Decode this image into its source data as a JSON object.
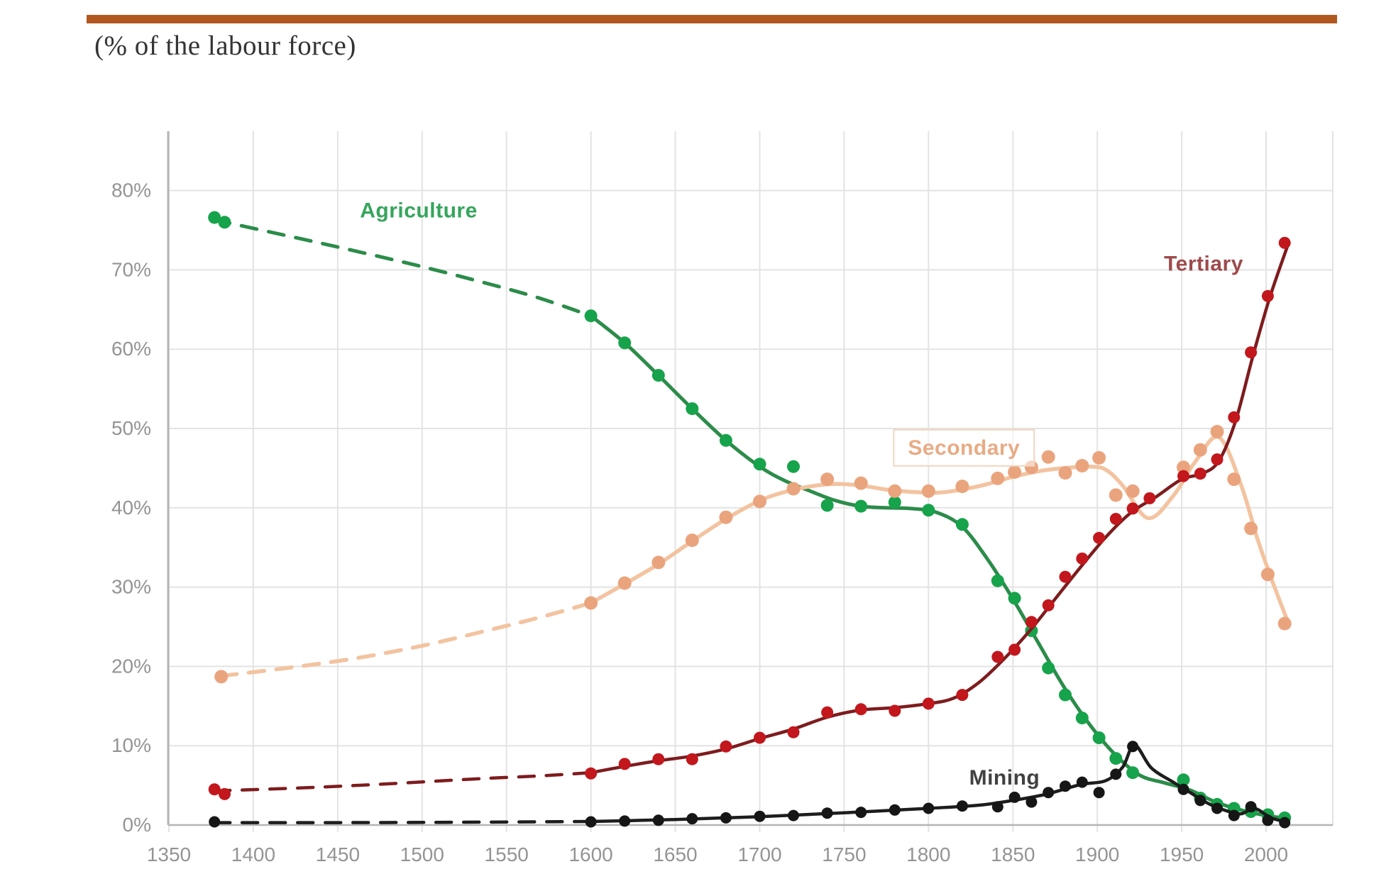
{
  "header": {
    "title": "(% of the labour force)",
    "rule_color": "#b2571f"
  },
  "chart_data": {
    "type": "line",
    "title": "(% of the labour force)",
    "xlabel": "",
    "ylabel": "",
    "x_axis": {
      "min": 1350,
      "max": 2000,
      "tick_step": 50,
      "tick_labels": [
        "1350",
        "1400",
        "1450",
        "1500",
        "1550",
        "1600",
        "1650",
        "1700",
        "1750",
        "1800",
        "1850",
        "1900",
        "1950",
        "2000"
      ]
    },
    "y_axis": {
      "min": 0,
      "max": 80,
      "tick_step": 10,
      "tick_labels": [
        "0%",
        "10%",
        "20%",
        "30%",
        "40%",
        "50%",
        "60%",
        "70%",
        "80%"
      ]
    },
    "grid": true,
    "legend_position": "inline-labels",
    "notes": "dashed segments = pre-1600 interpolation, solid = observed trend, dots = data points",
    "series": [
      {
        "id": "agriculture",
        "name": "Agriculture",
        "dot_color": "#17a34b",
        "line_color": "#2c8c4a",
        "label": {
          "text": "Agriculture",
          "year": 1498,
          "value": 77.5,
          "color": "#35a55b",
          "boxed": false
        },
        "dashed_line": [
          [
            1377,
            76.3
          ],
          [
            1420,
            74.3
          ],
          [
            1460,
            72.4
          ],
          [
            1500,
            70.4
          ],
          [
            1540,
            68.2
          ],
          [
            1570,
            66.4
          ],
          [
            1600,
            64.2
          ]
        ],
        "solid_line": [
          [
            1600,
            64.2
          ],
          [
            1620,
            60.8
          ],
          [
            1640,
            56.7
          ],
          [
            1660,
            52.5
          ],
          [
            1680,
            48.5
          ],
          [
            1700,
            45.2
          ],
          [
            1715,
            43.4
          ],
          [
            1730,
            42.1
          ],
          [
            1745,
            40.9
          ],
          [
            1760,
            40.2
          ],
          [
            1775,
            40.0
          ],
          [
            1790,
            39.9
          ],
          [
            1805,
            39.4
          ],
          [
            1820,
            37.6
          ],
          [
            1835,
            33.5
          ],
          [
            1850,
            28.5
          ],
          [
            1865,
            23.0
          ],
          [
            1880,
            17.5
          ],
          [
            1895,
            12.8
          ],
          [
            1910,
            9.0
          ],
          [
            1925,
            6.3
          ],
          [
            1940,
            5.3
          ],
          [
            1955,
            4.4
          ],
          [
            1970,
            2.9
          ],
          [
            1985,
            1.9
          ],
          [
            2000,
            1.2
          ],
          [
            2013,
            0.8
          ]
        ],
        "dots": [
          [
            1377,
            76.6
          ],
          [
            1383,
            76.0
          ],
          [
            1600,
            64.2
          ],
          [
            1620,
            60.8
          ],
          [
            1640,
            56.7
          ],
          [
            1660,
            52.5
          ],
          [
            1680,
            48.5
          ],
          [
            1700,
            45.5
          ],
          [
            1720,
            45.2
          ],
          [
            1740,
            40.3
          ],
          [
            1760,
            40.2
          ],
          [
            1780,
            40.7
          ],
          [
            1800,
            39.7
          ],
          [
            1820,
            37.9
          ],
          [
            1841,
            30.8
          ],
          [
            1851,
            28.6
          ],
          [
            1861,
            24.5
          ],
          [
            1871,
            19.8
          ],
          [
            1881,
            16.4
          ],
          [
            1891,
            13.5
          ],
          [
            1901,
            11.0
          ],
          [
            1911,
            8.4
          ],
          [
            1921,
            6.6
          ],
          [
            1951,
            5.7
          ],
          [
            1961,
            3.4
          ],
          [
            1971,
            2.6
          ],
          [
            1981,
            2.1
          ],
          [
            1991,
            1.7
          ],
          [
            2001,
            1.3
          ],
          [
            2011,
            0.9
          ]
        ]
      },
      {
        "id": "secondary",
        "name": "Secondary",
        "dot_color": "#eaa47d",
        "line_color": "#f3c3a0",
        "label": {
          "text": "Secondary",
          "year": 1821,
          "value": 47.6,
          "color": "#e8ab85",
          "boxed": true,
          "box_color": "#f0d5bf"
        },
        "dashed_line": [
          [
            1381,
            18.8
          ],
          [
            1420,
            19.8
          ],
          [
            1460,
            21.0
          ],
          [
            1500,
            22.6
          ],
          [
            1540,
            24.6
          ],
          [
            1570,
            26.2
          ],
          [
            1600,
            28.0
          ]
        ],
        "solid_line": [
          [
            1600,
            28.0
          ],
          [
            1620,
            30.4
          ],
          [
            1640,
            32.9
          ],
          [
            1660,
            35.8
          ],
          [
            1680,
            38.6
          ],
          [
            1700,
            40.9
          ],
          [
            1715,
            42.0
          ],
          [
            1730,
            42.7
          ],
          [
            1745,
            43.0
          ],
          [
            1760,
            42.8
          ],
          [
            1775,
            42.3
          ],
          [
            1790,
            42.0
          ],
          [
            1805,
            41.9
          ],
          [
            1820,
            42.3
          ],
          [
            1835,
            43.0
          ],
          [
            1850,
            43.9
          ],
          [
            1865,
            44.6
          ],
          [
            1880,
            45.0
          ],
          [
            1895,
            45.2
          ],
          [
            1905,
            44.8
          ],
          [
            1915,
            42.8
          ],
          [
            1930,
            38.7
          ],
          [
            1945,
            41.5
          ],
          [
            1958,
            45.8
          ],
          [
            1972,
            48.9
          ],
          [
            1985,
            43.0
          ],
          [
            1995,
            36.0
          ],
          [
            2005,
            30.0
          ],
          [
            2013,
            25.6
          ]
        ],
        "dots": [
          [
            1381,
            18.7
          ],
          [
            1600,
            28.0
          ],
          [
            1620,
            30.5
          ],
          [
            1640,
            33.1
          ],
          [
            1660,
            35.9
          ],
          [
            1680,
            38.8
          ],
          [
            1700,
            40.8
          ],
          [
            1720,
            42.4
          ],
          [
            1740,
            43.6
          ],
          [
            1760,
            43.1
          ],
          [
            1780,
            42.1
          ],
          [
            1800,
            42.1
          ],
          [
            1820,
            42.7
          ],
          [
            1841,
            43.7
          ],
          [
            1851,
            44.5
          ],
          [
            1861,
            45.1
          ],
          [
            1871,
            46.4
          ],
          [
            1881,
            44.4
          ],
          [
            1891,
            45.3
          ],
          [
            1901,
            46.3
          ],
          [
            1911,
            41.6
          ],
          [
            1921,
            42.1
          ],
          [
            1951,
            45.1
          ],
          [
            1961,
            47.3
          ],
          [
            1971,
            49.6
          ],
          [
            1981,
            43.6
          ],
          [
            1991,
            37.4
          ],
          [
            2001,
            31.6
          ],
          [
            2011,
            25.4
          ]
        ]
      },
      {
        "id": "tertiary",
        "name": "Tertiary",
        "dot_color": "#c2171d",
        "line_color": "#7e1c1e",
        "label": {
          "text": "Tertiary",
          "year": 1963,
          "value": 70.8,
          "color": "#9e4a4c",
          "boxed": false
        },
        "dashed_line": [
          [
            1377,
            4.3
          ],
          [
            1430,
            4.7
          ],
          [
            1480,
            5.2
          ],
          [
            1530,
            5.8
          ],
          [
            1570,
            6.2
          ],
          [
            1600,
            6.6
          ]
        ],
        "solid_line": [
          [
            1600,
            6.6
          ],
          [
            1620,
            7.4
          ],
          [
            1640,
            8.1
          ],
          [
            1660,
            8.7
          ],
          [
            1680,
            9.6
          ],
          [
            1700,
            10.9
          ],
          [
            1720,
            12.1
          ],
          [
            1740,
            13.6
          ],
          [
            1760,
            14.5
          ],
          [
            1780,
            14.8
          ],
          [
            1800,
            15.3
          ],
          [
            1815,
            16.0
          ],
          [
            1830,
            18.0
          ],
          [
            1845,
            21.0
          ],
          [
            1860,
            24.5
          ],
          [
            1875,
            28.5
          ],
          [
            1890,
            32.5
          ],
          [
            1905,
            36.3
          ],
          [
            1920,
            39.4
          ],
          [
            1935,
            41.4
          ],
          [
            1950,
            43.6
          ],
          [
            1962,
            44.3
          ],
          [
            1972,
            45.9
          ],
          [
            1982,
            51.0
          ],
          [
            1992,
            59.0
          ],
          [
            2002,
            66.4
          ],
          [
            2013,
            73.2
          ]
        ],
        "dots": [
          [
            1377,
            4.5
          ],
          [
            1383,
            3.9
          ],
          [
            1600,
            6.5
          ],
          [
            1620,
            7.7
          ],
          [
            1640,
            8.3
          ],
          [
            1660,
            8.3
          ],
          [
            1680,
            9.9
          ],
          [
            1700,
            11.0
          ],
          [
            1720,
            11.7
          ],
          [
            1740,
            14.2
          ],
          [
            1760,
            14.6
          ],
          [
            1780,
            14.4
          ],
          [
            1800,
            15.3
          ],
          [
            1820,
            16.4
          ],
          [
            1841,
            21.2
          ],
          [
            1851,
            22.1
          ],
          [
            1861,
            25.6
          ],
          [
            1871,
            27.7
          ],
          [
            1881,
            31.3
          ],
          [
            1891,
            33.6
          ],
          [
            1901,
            36.2
          ],
          [
            1911,
            38.6
          ],
          [
            1921,
            39.9
          ],
          [
            1931,
            41.2
          ],
          [
            1951,
            44.0
          ],
          [
            1961,
            44.3
          ],
          [
            1971,
            46.1
          ],
          [
            1981,
            51.4
          ],
          [
            1991,
            59.6
          ],
          [
            2001,
            66.7
          ],
          [
            2011,
            73.4
          ]
        ]
      },
      {
        "id": "mining",
        "name": "Mining",
        "dot_color": "#161616",
        "line_color": "#1d1d1d",
        "label": {
          "text": "Mining",
          "year": 1845,
          "value": 6.0,
          "color": "#414141",
          "boxed": false
        },
        "dashed_line": [
          [
            1377,
            0.3
          ],
          [
            1450,
            0.3
          ],
          [
            1520,
            0.35
          ],
          [
            1600,
            0.45
          ]
        ],
        "solid_line": [
          [
            1600,
            0.45
          ],
          [
            1650,
            0.7
          ],
          [
            1700,
            1.05
          ],
          [
            1750,
            1.55
          ],
          [
            1800,
            2.1
          ],
          [
            1830,
            2.5
          ],
          [
            1850,
            3.1
          ],
          [
            1870,
            3.9
          ],
          [
            1890,
            5.1
          ],
          [
            1905,
            5.6
          ],
          [
            1915,
            7.3
          ],
          [
            1922,
            10.1
          ],
          [
            1932,
            7.2
          ],
          [
            1945,
            5.4
          ],
          [
            1955,
            4.1
          ],
          [
            1965,
            2.8
          ],
          [
            1975,
            1.9
          ],
          [
            1985,
            1.4
          ],
          [
            1993,
            2.1
          ],
          [
            2003,
            0.9
          ],
          [
            2013,
            0.35
          ]
        ],
        "dots": [
          [
            1377,
            0.4
          ],
          [
            1600,
            0.4
          ],
          [
            1620,
            0.5
          ],
          [
            1640,
            0.6
          ],
          [
            1660,
            0.8
          ],
          [
            1680,
            0.9
          ],
          [
            1700,
            1.1
          ],
          [
            1720,
            1.2
          ],
          [
            1740,
            1.5
          ],
          [
            1760,
            1.6
          ],
          [
            1780,
            1.9
          ],
          [
            1800,
            2.1
          ],
          [
            1820,
            2.4
          ],
          [
            1841,
            2.3
          ],
          [
            1851,
            3.5
          ],
          [
            1861,
            2.9
          ],
          [
            1871,
            4.1
          ],
          [
            1881,
            4.9
          ],
          [
            1891,
            5.4
          ],
          [
            1901,
            4.1
          ],
          [
            1911,
            6.4
          ],
          [
            1921,
            9.9
          ],
          [
            1951,
            4.5
          ],
          [
            1961,
            3.1
          ],
          [
            1971,
            2.1
          ],
          [
            1981,
            1.2
          ],
          [
            1991,
            2.3
          ],
          [
            2001,
            0.6
          ],
          [
            2011,
            0.3
          ]
        ]
      }
    ],
    "colors": {
      "grid": "#e3e3e3",
      "axis": "#b5b5b5",
      "tick_label": "#949494",
      "title_text": "#333333"
    }
  }
}
